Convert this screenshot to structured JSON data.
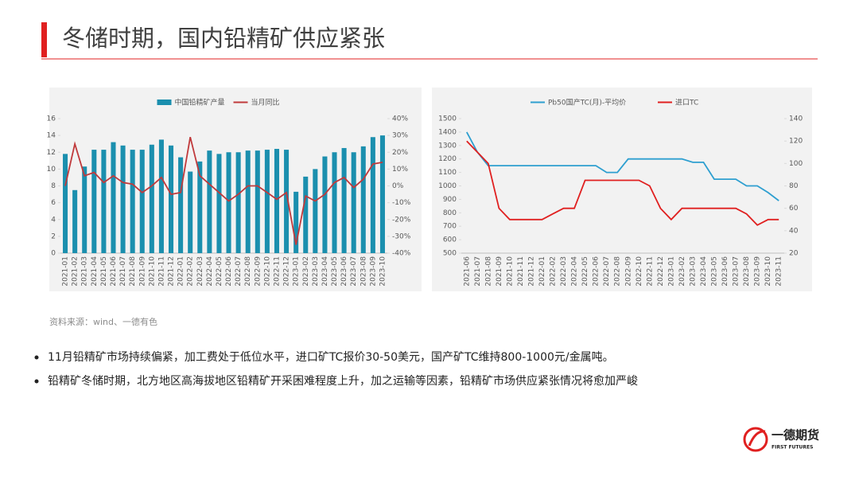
{
  "header": {
    "title": "冬储时期，国内铅精矿供应紧张"
  },
  "chart_data": [
    {
      "type": "bar",
      "legend": "top",
      "grid": false,
      "categories": [
        "2021-01",
        "2021-02",
        "2021-03",
        "2021-04",
        "2021-05",
        "2021-06",
        "2021-07",
        "2021-08",
        "2021-09",
        "2021-10",
        "2021-11",
        "2021-12",
        "2022-01",
        "2022-02",
        "2022-03",
        "2022-04",
        "2022-05",
        "2022-06",
        "2022-07",
        "2022-08",
        "2022-09",
        "2022-10",
        "2022-11",
        "2022-12",
        "2023-01",
        "2023-02",
        "2023-03",
        "2023-04",
        "2023-05",
        "2023-06",
        "2023-07",
        "2023-08",
        "2023-09",
        "2023-10"
      ],
      "series": [
        {
          "name": "中国铅精矿产量",
          "type": "bar",
          "color": "#1b8fae",
          "values": [
            11.8,
            7.5,
            10.3,
            12.3,
            12.3,
            13.2,
            12.8,
            12.3,
            12.3,
            12.9,
            13.5,
            12.8,
            11.4,
            9.7,
            10.9,
            12.2,
            11.8,
            12.0,
            12.0,
            12.2,
            12.2,
            12.3,
            12.4,
            12.3,
            7.3,
            9.1,
            10.0,
            11.5,
            12.0,
            12.5,
            12.0,
            12.7,
            13.8,
            14.0
          ]
        },
        {
          "name": "当月同比",
          "type": "line",
          "axis": "y2",
          "color": "#c0393b",
          "values": [
            0,
            25,
            6,
            8,
            2,
            6,
            2,
            1,
            -4,
            0,
            5,
            -5,
            -4,
            29,
            6,
            1,
            -4,
            -9,
            -5,
            0,
            0,
            -4,
            -8,
            -4,
            -35,
            -6,
            -9,
            -5,
            2,
            5,
            -1,
            4,
            13,
            14
          ]
        }
      ],
      "ylim": [
        0,
        16
      ],
      "yticks": [
        0,
        2,
        4,
        6,
        8,
        10,
        12,
        14,
        16
      ],
      "y2lim": [
        -40,
        40
      ],
      "y2ticks": [
        {
          "value": -40,
          "label": "-40%"
        },
        {
          "value": -30,
          "label": "-30%"
        },
        {
          "value": -20,
          "label": "-20%"
        },
        {
          "value": -10,
          "label": "-10%"
        },
        {
          "value": 0,
          "label": "0%"
        },
        {
          "value": 10,
          "label": "10%"
        },
        {
          "value": 20,
          "label": "20%"
        },
        {
          "value": 30,
          "label": "30%"
        },
        {
          "value": 40,
          "label": "40%"
        }
      ]
    },
    {
      "type": "line",
      "legend": "top",
      "grid": false,
      "categories": [
        "2021-06",
        "2021-07",
        "2021-08",
        "2021-09",
        "2021-10",
        "2021-11",
        "2021-12",
        "2022-01",
        "2022-02",
        "2022-03",
        "2022-04",
        "2022-05",
        "2022-06",
        "2022-07",
        "2022-08",
        "2022-09",
        "2022-10",
        "2022-11",
        "2022-12",
        "2023-01",
        "2023-02",
        "2023-03",
        "2023-04",
        "2023-05",
        "2023-06",
        "2023-07",
        "2023-08",
        "2023-09",
        "2023-10",
        "2023-11"
      ],
      "series": [
        {
          "name": "Pb50国产TC(月)-平均价",
          "type": "line",
          "color": "#2e9fd0",
          "values": [
            1400,
            1250,
            1150,
            1150,
            1150,
            1150,
            1150,
            1150,
            1150,
            1150,
            1150,
            1150,
            1150,
            1100,
            1100,
            1200,
            1200,
            1200,
            1200,
            1200,
            1200,
            1175,
            1175,
            1050,
            1050,
            1050,
            1000,
            1000,
            950,
            890
          ]
        },
        {
          "name": "进口TC",
          "type": "line",
          "axis": "y2",
          "color": "#e02020",
          "values": [
            120,
            110,
            100,
            60,
            50,
            50,
            50,
            50,
            55,
            60,
            60,
            85,
            85,
            85,
            85,
            85,
            85,
            80,
            60,
            50,
            60,
            60,
            60,
            60,
            60,
            60,
            55,
            45,
            50,
            50
          ]
        }
      ],
      "ylim": [
        500,
        1500
      ],
      "yticks": [
        500,
        600,
        700,
        800,
        900,
        1000,
        1100,
        1200,
        1300,
        1400,
        1500
      ],
      "y2lim": [
        20,
        140
      ],
      "y2ticks": [
        20,
        40,
        60,
        80,
        100,
        120,
        140
      ]
    }
  ],
  "source": "资料来源：wind、一德有色",
  "bullets": [
    "11月铅精矿市场持续偏紧，加工费处于低位水平，进口矿TC报价30-50美元，国产矿TC维持800-1000元/金属吨。",
    "铅精矿冬储时期，北方地区高海拔地区铅精矿开采困难程度上升，加之运输等因素，铅精矿市场供应紧张情况将愈加严峻"
  ],
  "logo": {
    "name": "一德期货",
    "subtitle": "FIRST FUTURES"
  }
}
